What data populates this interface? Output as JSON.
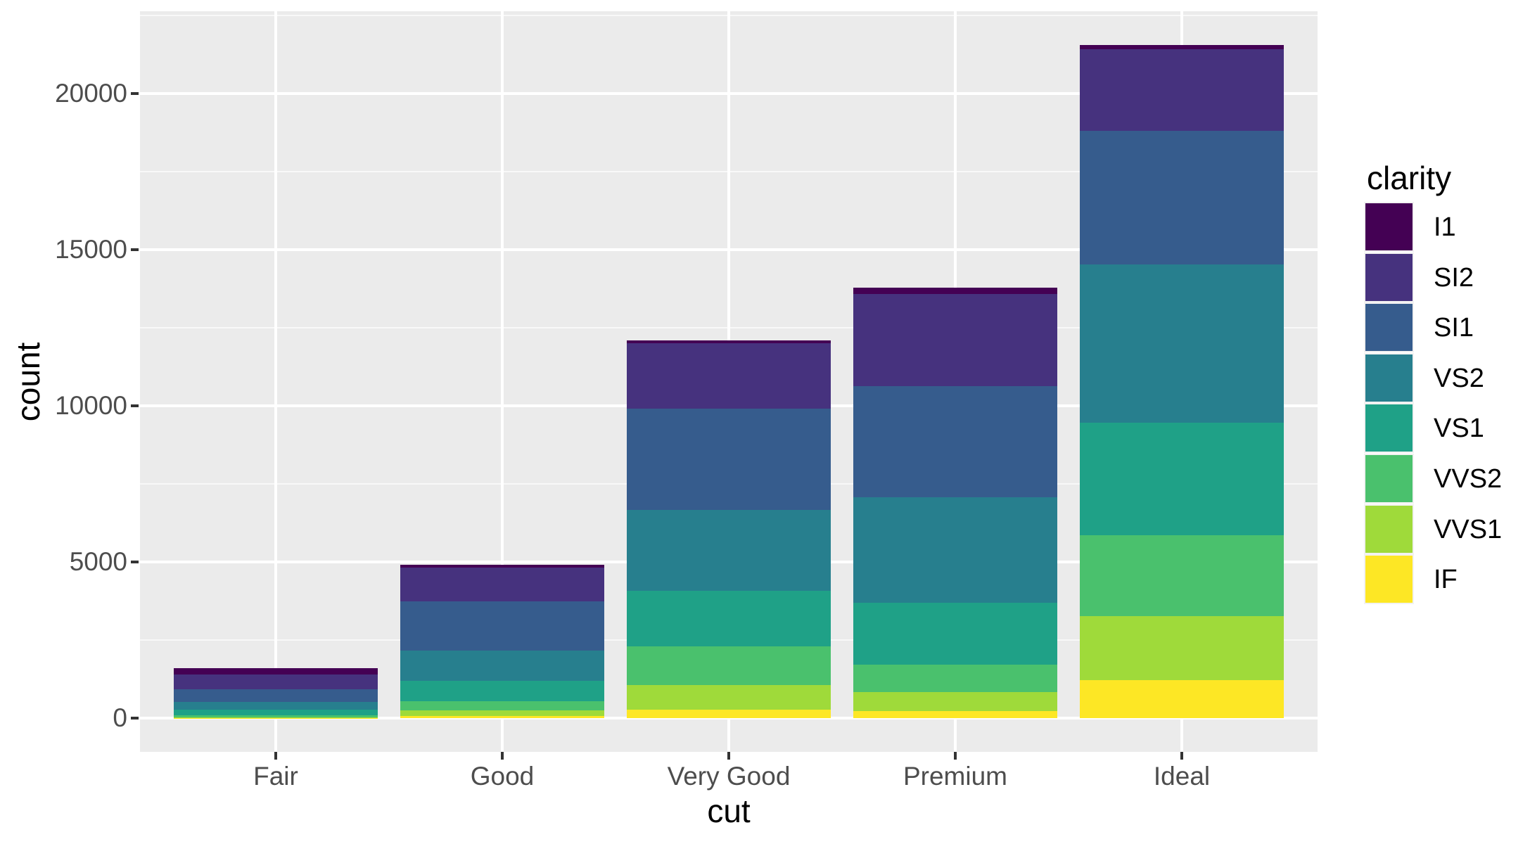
{
  "figure": {
    "background": "#FFFFFF"
  },
  "panel": {
    "background": "#EBEBEB",
    "grid_major_color": "#FFFFFF",
    "grid_minor_color": "#FFFFFF"
  },
  "axes": {
    "x": {
      "title": "cut",
      "tick_labels": [
        "Fair",
        "Good",
        "Very Good",
        "Premium",
        "Ideal"
      ]
    },
    "y": {
      "title": "count",
      "tick_labels": [
        "0",
        "5000",
        "10000",
        "15000",
        "20000"
      ],
      "tick_values": [
        0,
        5000,
        10000,
        15000,
        20000
      ],
      "minor_tick_values": [
        2500,
        7500,
        12500,
        17500,
        22500
      ],
      "limits": [
        -1078,
        22629
      ]
    }
  },
  "legend": {
    "title": "clarity",
    "entries": [
      {
        "label": "I1",
        "color": "#440154"
      },
      {
        "label": "SI2",
        "color": "#46327E"
      },
      {
        "label": "SI1",
        "color": "#365C8D"
      },
      {
        "label": "VS2",
        "color": "#277F8E"
      },
      {
        "label": "VS1",
        "color": "#1FA187"
      },
      {
        "label": "VVS2",
        "color": "#4AC16D"
      },
      {
        "label": "VVS1",
        "color": "#9FDA3A"
      },
      {
        "label": "IF",
        "color": "#FDE725"
      }
    ]
  },
  "chart_data": {
    "type": "bar",
    "stacked": true,
    "title": "",
    "xlabel": "cut",
    "ylabel": "count",
    "ylim": [
      0,
      22629
    ],
    "grid": true,
    "legend_position": "right",
    "categories": [
      "Fair",
      "Good",
      "Very Good",
      "Premium",
      "Ideal"
    ],
    "stack_order_top_to_bottom": [
      "I1",
      "SI2",
      "SI1",
      "VS2",
      "VS1",
      "VVS2",
      "VVS1",
      "IF"
    ],
    "series": [
      {
        "name": "I1",
        "color": "#440154",
        "values": [
          210,
          96,
          84,
          205,
          146
        ]
      },
      {
        "name": "SI2",
        "color": "#46327E",
        "values": [
          466,
          1081,
          2100,
          2949,
          2598
        ]
      },
      {
        "name": "SI1",
        "color": "#365C8D",
        "values": [
          408,
          1560,
          3240,
          3575,
          4282
        ]
      },
      {
        "name": "VS2",
        "color": "#277F8E",
        "values": [
          261,
          978,
          2591,
          3357,
          5071
        ]
      },
      {
        "name": "VS1",
        "color": "#1FA187",
        "values": [
          170,
          648,
          1775,
          1989,
          3589
        ]
      },
      {
        "name": "VVS2",
        "color": "#4AC16D",
        "values": [
          69,
          286,
          1235,
          870,
          2606
        ]
      },
      {
        "name": "VVS1",
        "color": "#9FDA3A",
        "values": [
          17,
          186,
          789,
          616,
          2047
        ]
      },
      {
        "name": "IF",
        "color": "#FDE725",
        "values": [
          9,
          71,
          268,
          230,
          1212
        ]
      }
    ],
    "category_totals": [
      1610,
      4906,
      12082,
      13791,
      21551
    ]
  }
}
